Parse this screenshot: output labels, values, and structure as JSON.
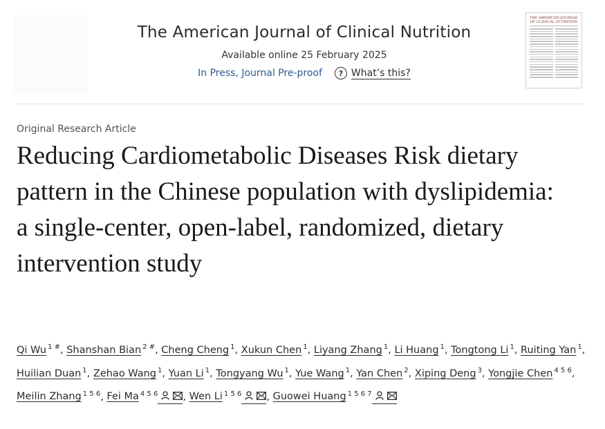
{
  "journal": {
    "title": "The American Journal of Clinical Nutrition",
    "available": "Available online 25 February 2025",
    "status": "In Press, Journal Pre-proof",
    "whats_this": "What’s this?",
    "help_icon": "question-circle-icon",
    "cover_title": "THE AMERICAN JOURNAL OF CLINICAL NUTRITION"
  },
  "article": {
    "type": "Original Research Article",
    "title": "Reducing Cardiometabolic Diseases Risk dietary pattern in the Chinese population with dyslipidemia: a single-center, open-label, randomized, dietary intervention study"
  },
  "authors": [
    {
      "name": "Qi Wu",
      "aff": "1 #"
    },
    {
      "name": "Shanshan Bian",
      "aff": "2 #"
    },
    {
      "name": "Cheng Cheng",
      "aff": "1"
    },
    {
      "name": "Xukun Chen",
      "aff": "1"
    },
    {
      "name": "Liyang Zhang",
      "aff": "1"
    },
    {
      "name": "Li Huang",
      "aff": "1"
    },
    {
      "name": "Tongtong Li",
      "aff": "1"
    },
    {
      "name": "Ruiting Yan",
      "aff": "1"
    },
    {
      "name": "Huilian Duan",
      "aff": "1"
    },
    {
      "name": "Zehao Wang",
      "aff": "1"
    },
    {
      "name": "Yuan Li",
      "aff": "1"
    },
    {
      "name": "Tongyang Wu",
      "aff": "1"
    },
    {
      "name": "Yue Wang",
      "aff": "1"
    },
    {
      "name": "Yan Chen",
      "aff": "2"
    },
    {
      "name": "Xiping Deng",
      "aff": "3"
    },
    {
      "name": "Yongjie Chen",
      "aff": "4 5 6"
    },
    {
      "name": "Meilin Zhang",
      "aff": "1 5 6"
    },
    {
      "name": "Fei Ma",
      "aff": "4 5 6",
      "icons": [
        "person-icon",
        "mail-icon"
      ]
    },
    {
      "name": "Wen Li",
      "aff": "1 5 6",
      "icons": [
        "person-icon",
        "mail-icon"
      ]
    },
    {
      "name": "Guowei Huang",
      "aff": "1 5 6 7",
      "icons": [
        "person-icon",
        "mail-icon"
      ]
    }
  ],
  "colors": {
    "link": "#2e5b8f",
    "text": "#1f1f1f",
    "cover_red": "#7a1a1a"
  }
}
